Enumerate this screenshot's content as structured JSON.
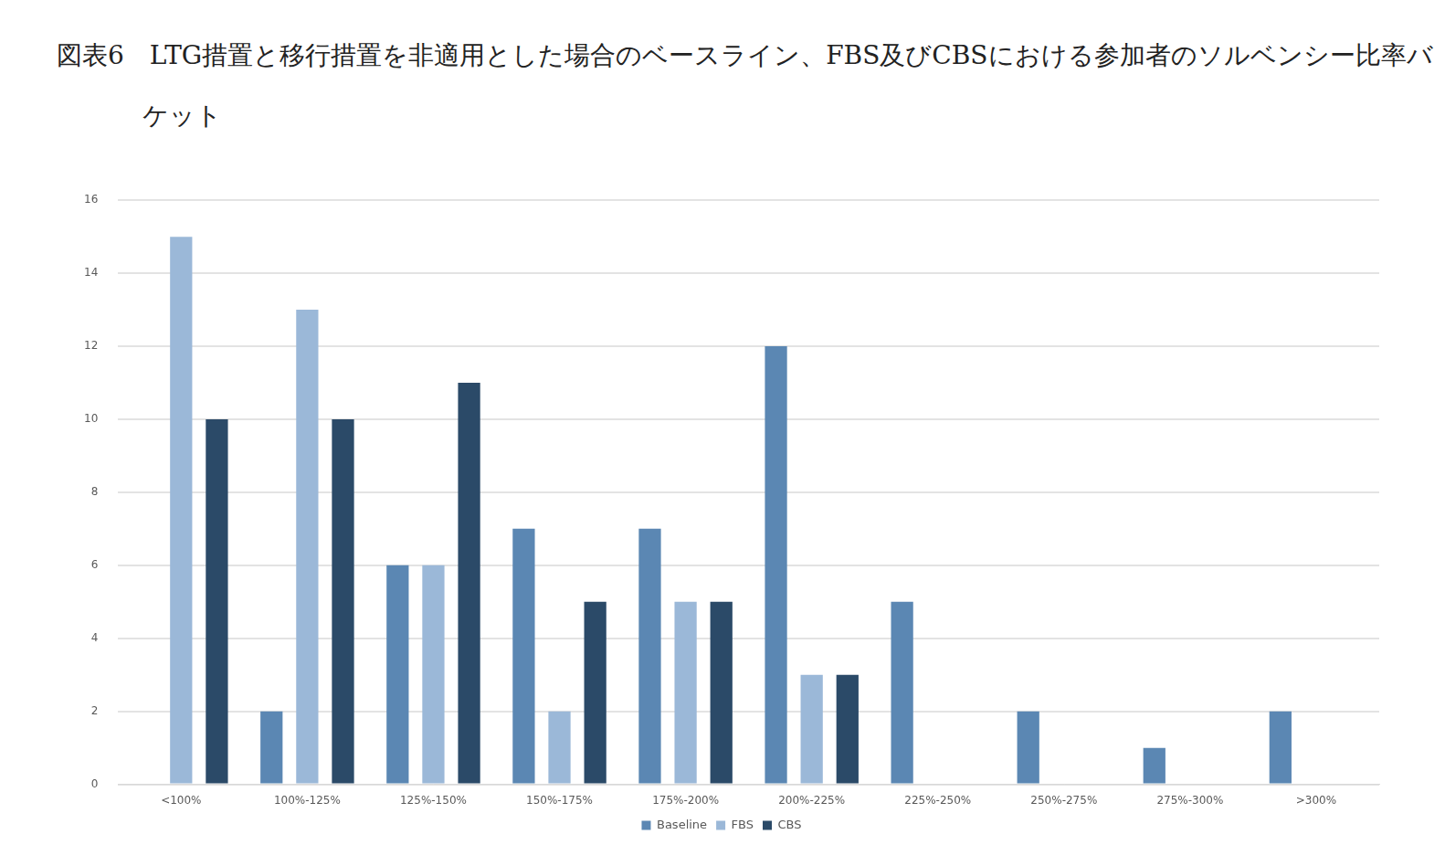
{
  "chart_data": {
    "type": "bar",
    "title": "図表6　LTG措置と移行措置を非適用とした場合のベースライン、FBS及びCBSにおける参加者のソルベンシー比率バケット",
    "categories": [
      "<100%",
      "100%-125%",
      "125%-150%",
      "150%-175%",
      "175%-200%",
      "200%-225%",
      "225%-250%",
      "250%-275%",
      "275%-300%",
      ">300%"
    ],
    "series": [
      {
        "name": "Baseline",
        "color": "#5b87b3",
        "values": [
          0,
          2,
          6,
          7,
          7,
          12,
          5,
          2,
          1,
          2
        ]
      },
      {
        "name": "FBS",
        "color": "#9bb8d8",
        "values": [
          15,
          13,
          6,
          2,
          5,
          3,
          0,
          0,
          0,
          0
        ]
      },
      {
        "name": "CBS",
        "color": "#2b4a68",
        "values": [
          10,
          10,
          11,
          5,
          5,
          3,
          0,
          0,
          0,
          0
        ]
      }
    ],
    "ylim": [
      0,
      16
    ],
    "yticks": [
      0,
      2,
      4,
      6,
      8,
      10,
      12,
      14,
      16
    ],
    "grid": true,
    "legend": "bottom"
  }
}
